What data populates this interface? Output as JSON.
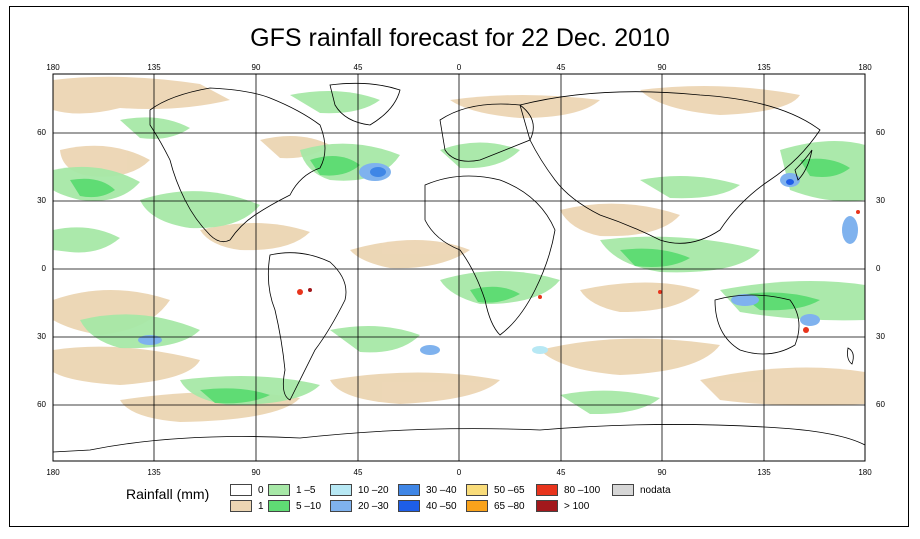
{
  "title": "GFS rainfall forecast for 22 Dec. 2010",
  "axes": {
    "lon_ticks": [
      "180",
      "135",
      "90",
      "45",
      "0",
      "45",
      "90",
      "135",
      "180"
    ],
    "lat_ticks": [
      "60",
      "30",
      "0",
      "30",
      "60"
    ]
  },
  "legend": {
    "title": "Rainfall (mm)",
    "items": [
      {
        "label": "0",
        "color": "#ffffff"
      },
      {
        "label": "1",
        "color": "#ecd5b3"
      },
      {
        "label": "1 –5",
        "color": "#a7e8a7"
      },
      {
        "label": "5 –10",
        "color": "#5fdc74"
      },
      {
        "label": "10 –20",
        "color": "#b7e8f4"
      },
      {
        "label": "20 –30",
        "color": "#7fb2ee"
      },
      {
        "label": "30 –40",
        "color": "#3f86e6"
      },
      {
        "label": "40 –50",
        "color": "#1e5ee8"
      },
      {
        "label": "50 –65",
        "color": "#f9dc7a"
      },
      {
        "label": "65 –80",
        "color": "#f9a21b"
      },
      {
        "label": "80 –100",
        "color": "#e8341c"
      },
      {
        "label": "> 100",
        "color": "#a2181c"
      },
      {
        "label": "nodata",
        "color": "#d6d6d6"
      }
    ]
  },
  "colors": {
    "land_outline": "#000000",
    "grid": "#000000"
  }
}
